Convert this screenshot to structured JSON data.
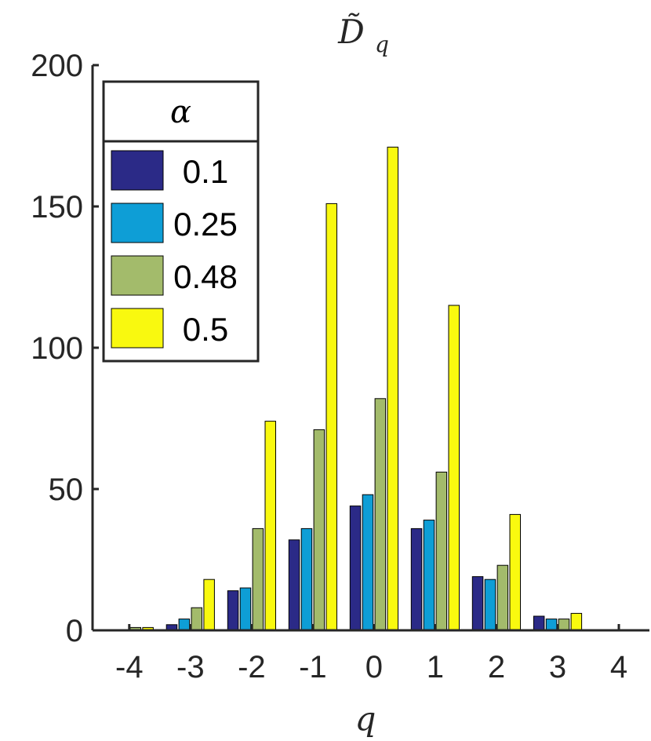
{
  "chart_data": {
    "type": "bar",
    "title": "D̃",
    "title_subscript": "q",
    "xlabel": "q",
    "ylabel": "",
    "ylim": [
      0,
      200
    ],
    "yticks": [
      0,
      50,
      100,
      150,
      200
    ],
    "categories": [
      "-4",
      "-3",
      "-2",
      "-1",
      "0",
      "1",
      "2",
      "3",
      "4"
    ],
    "legend_title": "α",
    "legend_position": "top-left",
    "grid": false,
    "series": [
      {
        "name": "0.1",
        "color": "#2B2A87",
        "values": [
          0,
          2,
          14,
          32,
          44,
          36,
          19,
          5,
          0
        ]
      },
      {
        "name": "0.25",
        "color": "#0E9ED6",
        "values": [
          0,
          4,
          15,
          36,
          48,
          39,
          18,
          4,
          0
        ]
      },
      {
        "name": "0.48",
        "color": "#A3BB6B",
        "values": [
          1,
          8,
          36,
          71,
          82,
          56,
          23,
          4,
          0
        ]
      },
      {
        "name": "0.5",
        "color": "#F9F90F",
        "values": [
          1,
          18,
          74,
          151,
          171,
          115,
          41,
          6,
          0
        ]
      }
    ]
  }
}
